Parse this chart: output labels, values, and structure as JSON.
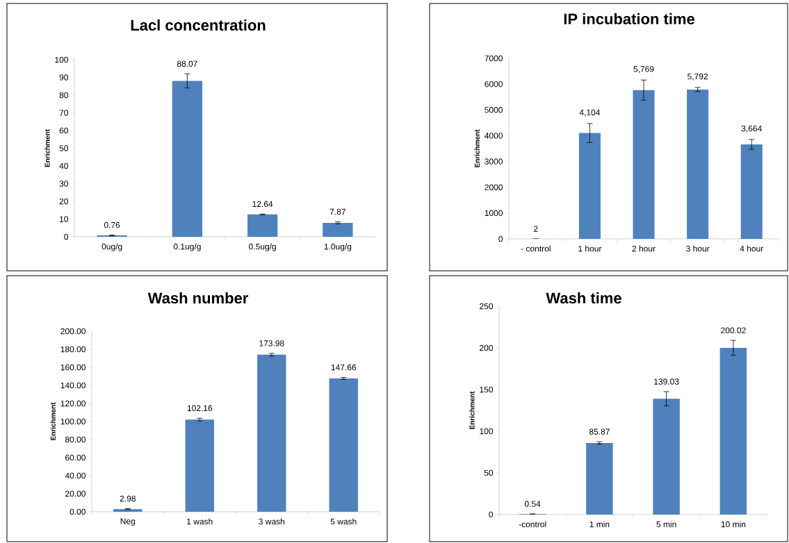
{
  "chart_data": [
    {
      "type": "bar",
      "title": "Lacl concentration",
      "ylabel": "Enrichment",
      "categories": [
        "0ug/g",
        "0.1ug/g",
        "0.5ug/g",
        "1.0ug/g"
      ],
      "values": [
        0.76,
        88.07,
        12.64,
        7.87
      ],
      "errors": [
        0.2,
        4,
        0.2,
        0.6
      ],
      "color": "#4f81bd",
      "ylim": [
        0,
        100
      ],
      "yticks": [
        0,
        10,
        20,
        30,
        40,
        50,
        60,
        70,
        80,
        90,
        100
      ],
      "data_labels": true
    },
    {
      "type": "bar",
      "title": "IP incubation time",
      "ylabel": "Enrichment",
      "categories": [
        "- control",
        "1 hour",
        "2 hour",
        "3 hour",
        "4 hour"
      ],
      "values": [
        2,
        4104,
        5769,
        5792,
        3664
      ],
      "value_labels": [
        "2",
        "4,104",
        "5,769",
        "5,792",
        "3,664"
      ],
      "errors": [
        null,
        370,
        390,
        80,
        190
      ],
      "color": "#4f81bd",
      "ylim": [
        0,
        7000
      ],
      "yticks": [
        0,
        1000,
        2000,
        3000,
        4000,
        5000,
        6000,
        7000
      ]
    },
    {
      "type": "bar",
      "title": "Wash number",
      "ylabel": "Enrichment",
      "categories": [
        "Neg",
        "1 wash",
        "3 wash",
        "5 wash"
      ],
      "values": [
        2.98,
        102.16,
        173.98,
        147.66
      ],
      "errors": [
        0.5,
        1.5,
        1.5,
        1.2
      ],
      "color": "#4f81bd",
      "ylim": [
        0,
        200
      ],
      "yticks": [
        {
          "value": 0,
          "label": "0.00"
        },
        {
          "value": 20,
          "label": "20.00"
        },
        {
          "value": 40,
          "label": "40.00"
        },
        {
          "value": 60,
          "label": "60.00"
        },
        {
          "value": 80,
          "label": "80.00"
        },
        {
          "value": 100,
          "label": "100.00"
        },
        {
          "value": 120,
          "label": "120.00"
        },
        {
          "value": 140,
          "label": "140.00"
        },
        {
          "value": 160,
          "label": "160.00"
        },
        {
          "value": 180,
          "label": "180.00"
        },
        {
          "value": 200,
          "label": "200.00"
        }
      ],
      "data_labels": true
    },
    {
      "type": "bar",
      "title": "Wash time",
      "ylabel": "Enrichment",
      "categories": [
        "-control",
        "1 min",
        "5 min",
        "10 min"
      ],
      "values": [
        0.54,
        85.87,
        139.03,
        200.02
      ],
      "errors": [
        0.3,
        1.5,
        8.5,
        9
      ],
      "color": "#4f81bd",
      "ylim": [
        0,
        250
      ],
      "yticks": [
        0,
        50,
        100,
        150,
        200,
        250
      ],
      "data_labels": true
    }
  ]
}
